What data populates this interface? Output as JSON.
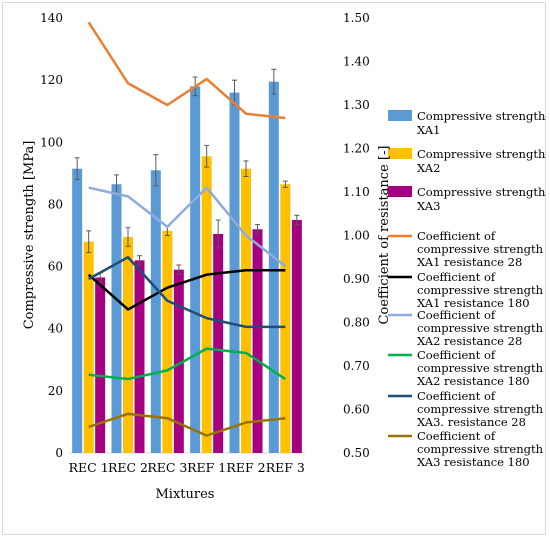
{
  "chart_data": {
    "type": "bar",
    "categories": [
      "REC 1",
      "REC 2",
      "REC 3",
      "REF 1",
      "REF 2",
      "REF 3"
    ],
    "xlabel": "Mixtures",
    "ylabel": "Compressive strength [MPa]",
    "y2label": "Coefficient of resistance  [-]",
    "ylim": [
      0,
      140
    ],
    "y2lim": [
      0.5,
      1.5
    ],
    "yticks": [
      "0",
      "20",
      "40",
      "60",
      "80",
      "100",
      "120",
      "140"
    ],
    "y2ticks": [
      "0.50",
      "0.60",
      "0.70",
      "0.80",
      "0.90",
      "1.00",
      "1.10",
      "1.20",
      "1.30",
      "1.40",
      "1.50"
    ],
    "grid": false,
    "legend_position": "right",
    "bar_series": [
      {
        "name": "Compressive strength XA1",
        "color": "#5b9bd5",
        "values": [
          91.5,
          86.5,
          91.0,
          118.0,
          116.0,
          119.5
        ],
        "errors": [
          3.5,
          3.0,
          5.0,
          3.0,
          4.0,
          4.0
        ]
      },
      {
        "name": "Compressive strength XA2",
        "color": "#ffc000",
        "values": [
          68.0,
          69.5,
          71.5,
          95.5,
          91.5,
          86.5
        ],
        "errors": [
          3.5,
          3.0,
          1.5,
          3.5,
          2.5,
          1.0
        ]
      },
      {
        "name": "Compressive strength XA3",
        "color": "#a5007f",
        "values": [
          56.5,
          62.0,
          59.0,
          70.5,
          72.0,
          75.0
        ],
        "errors": [
          1.5,
          1.5,
          1.5,
          4.5,
          1.5,
          1.5
        ]
      }
    ],
    "line_series": [
      {
        "name": "Coefficient of compressive strength XA1 resistance 28",
        "legend_lines": [
          "Coefficient of",
          "compressive strength",
          "XA1 resistance 28"
        ],
        "color": "#ed7d31",
        "values": [
          1.49,
          1.35,
          1.3,
          1.36,
          1.28,
          1.27
        ]
      },
      {
        "name": "Coefficient of compressive strength XA1 resistance 180",
        "legend_lines": [
          "Coefficient of",
          "compressive strength",
          "XA1 resistance 180"
        ],
        "color": "#000000",
        "values": [
          0.91,
          0.83,
          0.88,
          0.91,
          0.92,
          0.92
        ]
      },
      {
        "name": "Coefficient of compressive strength XA2 resistance 28",
        "legend_lines": [
          "Coefficient of",
          "compressive strength",
          "XA2 resistance 28"
        ],
        "color": "#8faadc",
        "values": [
          1.11,
          1.09,
          1.02,
          1.11,
          1.0,
          0.93
        ]
      },
      {
        "name": "Coefficient of compressive strength XA2 resistance 180",
        "legend_lines": [
          "Coefficient of",
          "compressive strength",
          "XA2 resistance 180"
        ],
        "color": "#00b050",
        "values": [
          0.68,
          0.67,
          0.69,
          0.74,
          0.73,
          0.67
        ]
      },
      {
        "name": "Coefficient of compressive strength XA3. resistance 28",
        "legend_lines": [
          "Coefficient of",
          "compressive strength",
          "XA3. resistance 28"
        ],
        "color": "#1f4e79",
        "values": [
          0.9,
          0.95,
          0.85,
          0.81,
          0.79,
          0.79
        ]
      },
      {
        "name": "Coefficient of compressive strength XA3 resistance 180",
        "legend_lines": [
          "Coefficient of",
          "compressive strength",
          "XA3 resistance 180"
        ],
        "color": "#997300",
        "values": [
          0.56,
          0.59,
          0.58,
          0.54,
          0.57,
          0.58
        ]
      }
    ]
  }
}
